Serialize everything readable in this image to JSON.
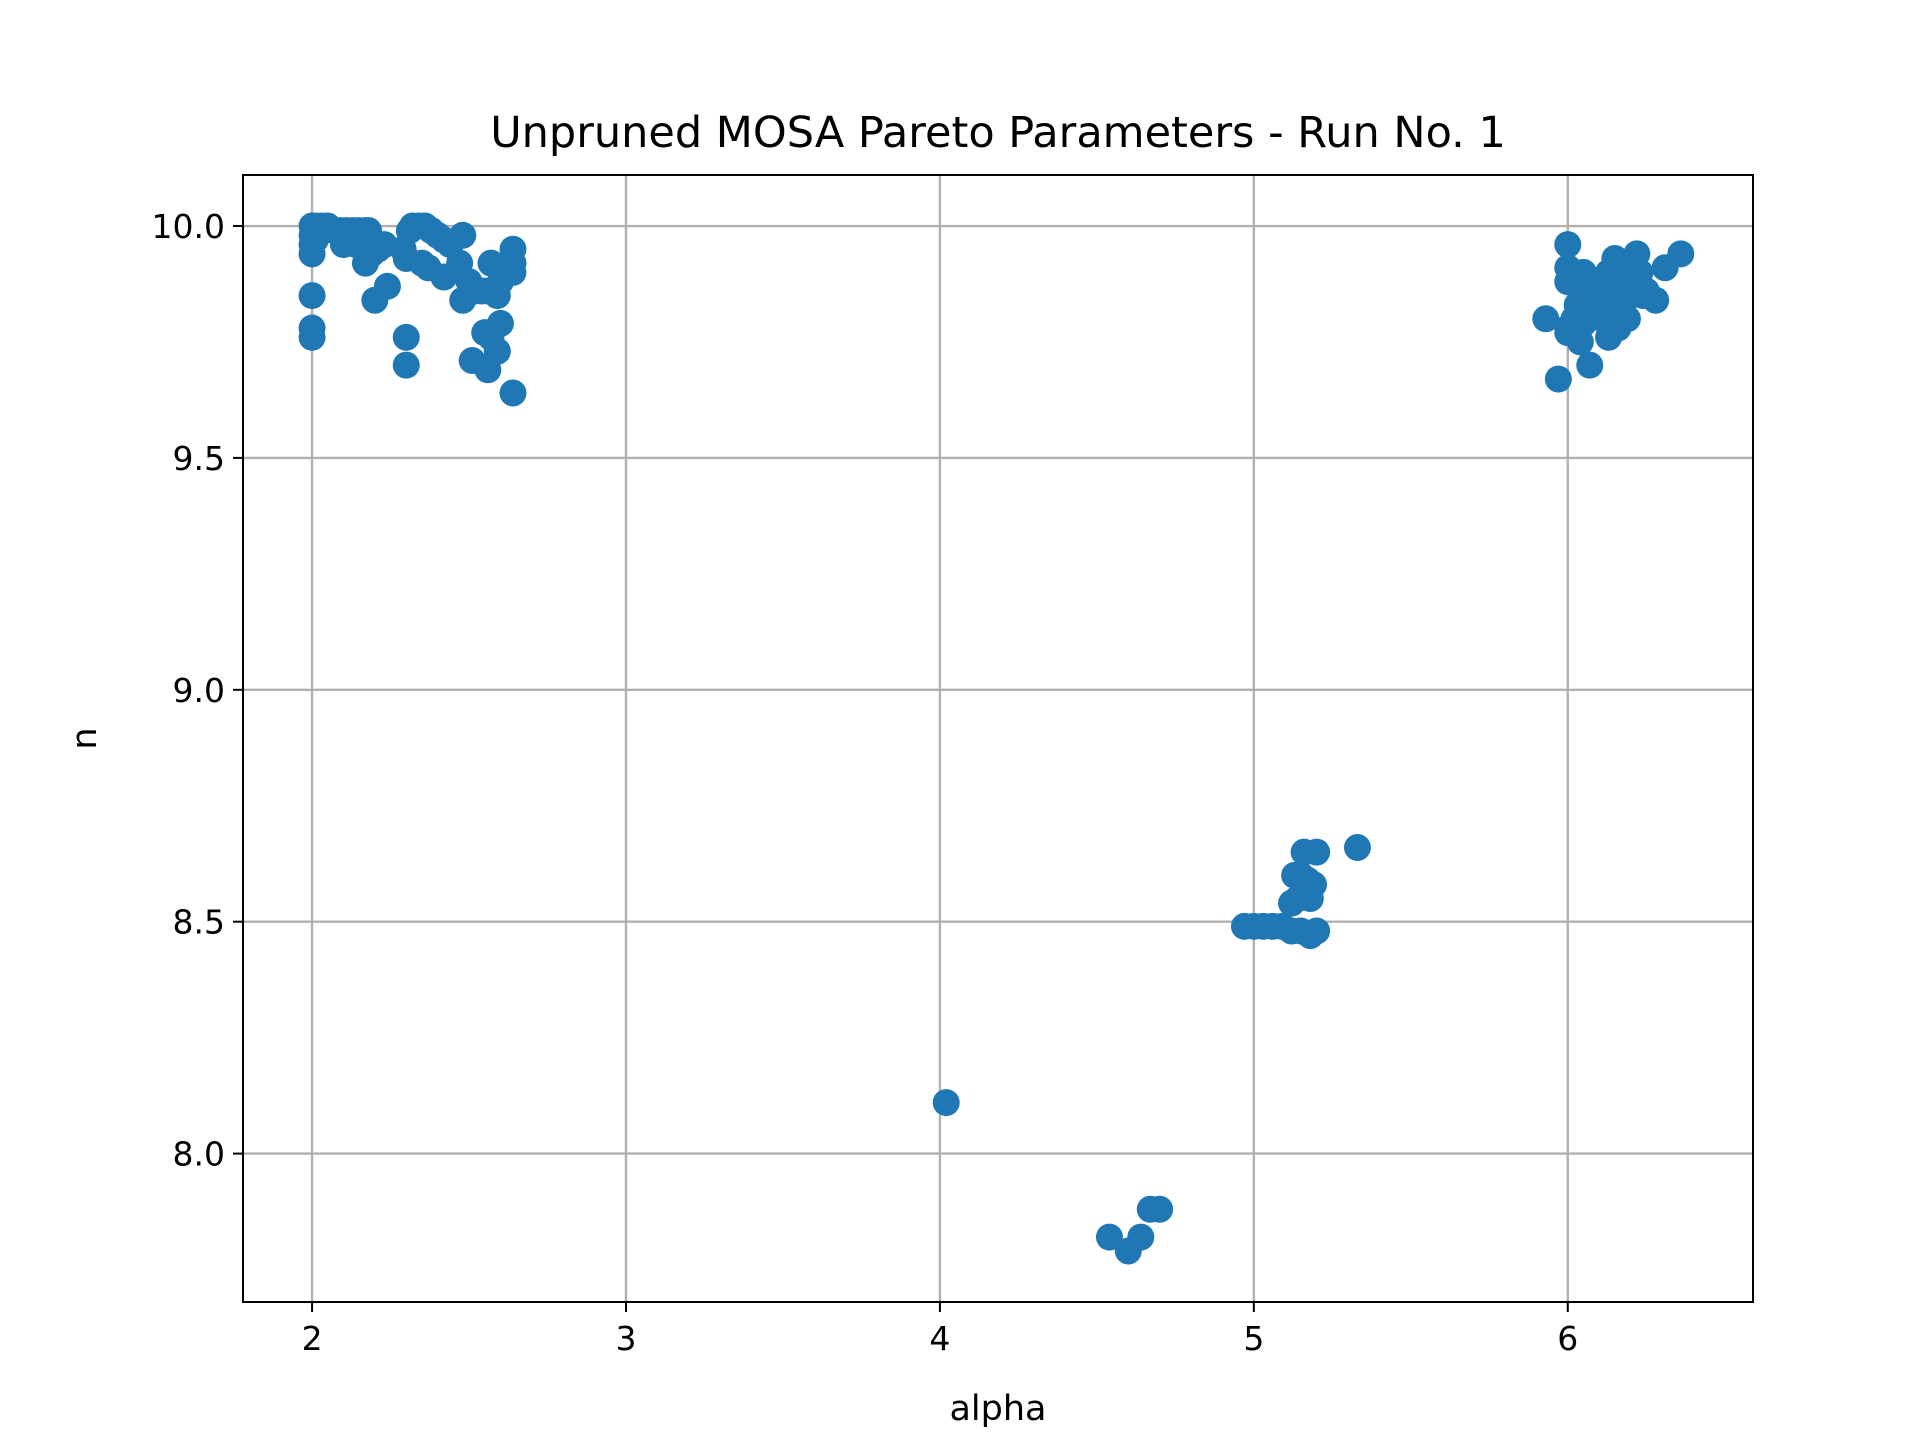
{
  "chart_data": {
    "type": "scatter",
    "title": "Unpruned MOSA Pareto Parameters - Run No. 1",
    "xlabel": "alpha",
    "ylabel": "n",
    "xlim": [
      1.78,
      6.59
    ],
    "ylim": [
      7.68,
      10.11
    ],
    "xticks": [
      "2",
      "3",
      "4",
      "5",
      "6"
    ],
    "xtick_values": [
      2,
      3,
      4,
      5,
      6
    ],
    "yticks": [
      "8.0",
      "8.5",
      "9.0",
      "9.5",
      "10.0"
    ],
    "ytick_values": [
      8.0,
      8.5,
      9.0,
      9.5,
      10.0
    ],
    "grid": true,
    "marker_color": "#1f77b4",
    "series": [
      {
        "x": [
          2.0,
          2.01,
          2.03,
          2.05,
          2.07,
          2.09,
          2.11,
          2.13,
          2.15,
          2.17,
          2.18,
          2.0,
          2.0,
          2.0,
          2.01,
          2.1,
          2.14,
          2.17,
          2.19,
          2.21,
          2.23,
          2.2,
          2.24,
          2.29,
          2.3,
          2.32,
          2.34,
          2.36,
          2.38,
          2.4,
          2.42,
          2.44,
          2.48,
          2.31,
          2.35,
          2.37,
          2.42,
          2.47,
          2.5,
          2.54,
          2.57,
          2.6,
          2.63,
          2.64,
          2.64,
          2.64,
          2.48,
          2.52,
          2.56,
          2.59,
          2.6,
          2.55,
          2.57,
          2.59,
          2.51,
          2.56,
          2.59,
          2.64,
          2.3,
          2.3,
          2.0,
          2.0,
          2.0
        ],
        "y": [
          10.0,
          10.0,
          10.0,
          10.0,
          9.99,
          9.99,
          9.99,
          9.99,
          9.99,
          9.99,
          9.99,
          9.98,
          9.96,
          9.94,
          9.97,
          9.96,
          9.96,
          9.92,
          9.94,
          9.95,
          9.96,
          9.84,
          9.87,
          9.95,
          9.93,
          10.0,
          10.0,
          10.0,
          9.99,
          9.98,
          9.97,
          9.96,
          9.98,
          9.99,
          9.92,
          9.91,
          9.89,
          9.92,
          9.88,
          9.86,
          9.92,
          9.88,
          9.9,
          9.95,
          9.92,
          9.9,
          9.84,
          9.86,
          9.86,
          9.85,
          9.79,
          9.77,
          9.76,
          9.73,
          9.71,
          9.69,
          9.73,
          9.64,
          9.76,
          9.7,
          9.85,
          9.78,
          9.76
        ]
      },
      {
        "x": [
          6.0,
          6.0,
          6.0,
          6.0,
          6.05,
          5.93,
          5.97,
          6.0,
          6.02,
          6.04,
          6.06,
          6.07,
          6.08,
          6.1,
          6.12,
          6.13,
          6.15,
          6.16,
          6.18,
          6.2,
          6.22,
          6.23,
          6.25,
          6.03,
          6.05,
          6.09,
          6.11,
          6.14,
          6.17,
          6.2,
          6.24,
          6.28,
          6.31,
          6.36,
          6.13,
          6.16,
          6.19,
          6.22,
          6.07
        ],
        "y": [
          9.96,
          9.91,
          9.88,
          9.77,
          9.9,
          9.8,
          9.67,
          9.78,
          9.8,
          9.75,
          9.85,
          9.88,
          9.81,
          9.83,
          9.86,
          9.9,
          9.93,
          9.88,
          9.92,
          9.85,
          9.94,
          9.9,
          9.86,
          9.83,
          9.79,
          9.82,
          9.8,
          9.84,
          9.88,
          9.91,
          9.85,
          9.84,
          9.91,
          9.94,
          9.76,
          9.78,
          9.8,
          9.86,
          9.7
        ]
      },
      {
        "x": [
          4.97,
          5.0,
          5.03,
          5.06,
          5.09,
          5.12,
          5.15,
          5.18,
          5.2,
          5.12,
          5.14,
          5.16,
          5.18,
          5.13,
          5.15,
          5.17,
          5.19,
          5.16,
          5.2,
          5.33
        ],
        "y": [
          8.49,
          8.49,
          8.49,
          8.49,
          8.49,
          8.48,
          8.48,
          8.47,
          8.48,
          8.54,
          8.55,
          8.56,
          8.55,
          8.6,
          8.6,
          8.59,
          8.58,
          8.65,
          8.65,
          8.66
        ]
      },
      {
        "x": [
          4.02,
          4.54,
          4.6,
          4.64,
          4.67,
          4.7
        ],
        "y": [
          8.11,
          7.82,
          7.79,
          7.82,
          7.88,
          7.88
        ]
      }
    ]
  }
}
